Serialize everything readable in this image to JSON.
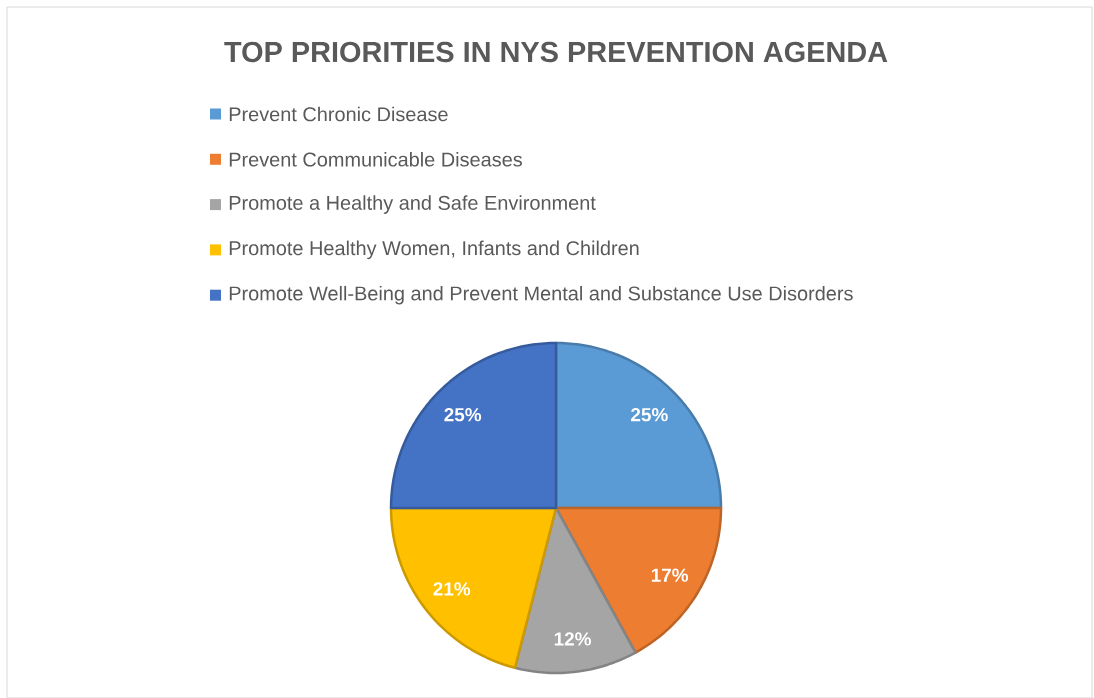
{
  "chart_data": {
    "type": "pie",
    "title": "TOP PRIORITIES IN NYS PREVENTION AGENDA",
    "categories": [
      "Prevent Chronic Disease",
      "Prevent Communicable Diseases",
      "Promote a Healthy and Safe Environment",
      "Promote Healthy Women, Infants and Children",
      "Promote Well-Being and Prevent Mental and Substance Use Disorders"
    ],
    "values": [
      25,
      17,
      12,
      21,
      25
    ],
    "colors": [
      "#5b9bd5",
      "#ed7d31",
      "#a5a5a5",
      "#ffc000",
      "#4472c4"
    ],
    "value_labels": [
      "25%",
      "17%",
      "12%",
      "21%",
      "25%"
    ],
    "legend": "top"
  }
}
